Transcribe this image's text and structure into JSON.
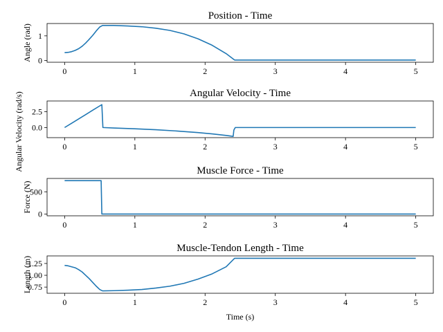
{
  "figure": {
    "background": "#ffffff",
    "line_color": "#1f77b4"
  },
  "chart_data": [
    {
      "type": "line",
      "title": "Position - Time",
      "xlabel": "",
      "ylabel": "Angle (rad)",
      "xlim": [
        -0.25,
        5.25
      ],
      "ylim": [
        -0.07,
        1.5
      ],
      "xticks": [
        0,
        1,
        2,
        3,
        4,
        5
      ],
      "yticks": [
        0,
        1
      ],
      "ytick_labels": [
        "0",
        "1"
      ],
      "grid": false,
      "legend": "none",
      "series": [
        {
          "x": [
            0,
            0.05,
            0.1,
            0.15,
            0.2,
            0.25,
            0.3,
            0.35,
            0.4,
            0.45,
            0.5,
            0.54,
            0.7,
            0.9,
            1.1,
            1.3,
            1.5,
            1.7,
            1.9,
            2.1,
            2.3,
            2.42,
            2.5,
            3,
            4,
            5
          ],
          "y": [
            0.32,
            0.33,
            0.36,
            0.41,
            0.48,
            0.58,
            0.71,
            0.86,
            1.02,
            1.2,
            1.36,
            1.42,
            1.42,
            1.4,
            1.37,
            1.31,
            1.22,
            1.08,
            0.88,
            0.62,
            0.28,
            0.02,
            0.02,
            0.02,
            0.02,
            0.02
          ]
        }
      ]
    },
    {
      "type": "line",
      "title": "Angular Velocity - Time",
      "xlabel": "",
      "ylabel": "Angular Velocity (rad/s)",
      "xlim": [
        -0.25,
        5.25
      ],
      "ylim": [
        -1.6,
        4.2
      ],
      "xticks": [
        0,
        1,
        2,
        3,
        4,
        5
      ],
      "yticks": [
        0,
        2.5
      ],
      "ytick_labels": [
        "0.0",
        "2.5"
      ],
      "grid": false,
      "legend": "none",
      "series": [
        {
          "x": [
            0,
            0.1,
            0.2,
            0.3,
            0.4,
            0.5,
            0.53,
            0.545,
            0.7,
            1.0,
            1.3,
            1.6,
            1.9,
            2.1,
            2.3,
            2.4,
            2.41,
            2.43,
            2.5,
            3,
            4,
            5
          ],
          "y": [
            0.0,
            0.68,
            1.36,
            2.05,
            2.74,
            3.42,
            3.62,
            0.0,
            -0.07,
            -0.2,
            -0.35,
            -0.55,
            -0.8,
            -1.0,
            -1.25,
            -1.4,
            -0.4,
            0.0,
            0.0,
            0.0,
            0.0,
            0.0
          ]
        }
      ]
    },
    {
      "type": "line",
      "title": "Muscle Force - Time",
      "xlabel": "",
      "ylabel": "Force (N)",
      "xlim": [
        -0.25,
        5.25
      ],
      "ylim": [
        -40,
        800
      ],
      "xticks": [
        0,
        1,
        2,
        3,
        4,
        5
      ],
      "yticks": [
        0,
        500
      ],
      "ytick_labels": [
        "0",
        "500"
      ],
      "grid": false,
      "legend": "none",
      "series": [
        {
          "x": [
            0,
            0.52,
            0.53,
            1,
            2,
            3,
            4,
            5
          ],
          "y": [
            750,
            750,
            0,
            0,
            0,
            0,
            0,
            0
          ]
        }
      ]
    },
    {
      "type": "line",
      "title": "Muscle-Tendon Length - Time",
      "xlabel": "Time (s)",
      "ylabel": "Length (m)",
      "xlim": [
        -0.25,
        5.25
      ],
      "ylim": [
        0.62,
        1.41
      ],
      "xticks": [
        0,
        1,
        2,
        3,
        4,
        5
      ],
      "yticks": [
        0.75,
        1.0,
        1.25
      ],
      "ytick_labels": [
        "0.75",
        "1.00",
        "1.25"
      ],
      "grid": false,
      "legend": "none",
      "series": [
        {
          "x": [
            0,
            0.05,
            0.1,
            0.15,
            0.2,
            0.25,
            0.3,
            0.35,
            0.4,
            0.45,
            0.5,
            0.54,
            0.7,
            0.9,
            1.1,
            1.3,
            1.5,
            1.7,
            1.9,
            2.1,
            2.3,
            2.42,
            2.5,
            3,
            4,
            5
          ],
          "y": [
            1.21,
            1.2,
            1.18,
            1.16,
            1.12,
            1.07,
            1.0,
            0.93,
            0.85,
            0.77,
            0.7,
            0.67,
            0.675,
            0.685,
            0.7,
            0.73,
            0.77,
            0.83,
            0.92,
            1.03,
            1.18,
            1.36,
            1.36,
            1.36,
            1.36,
            1.36
          ]
        }
      ]
    }
  ]
}
